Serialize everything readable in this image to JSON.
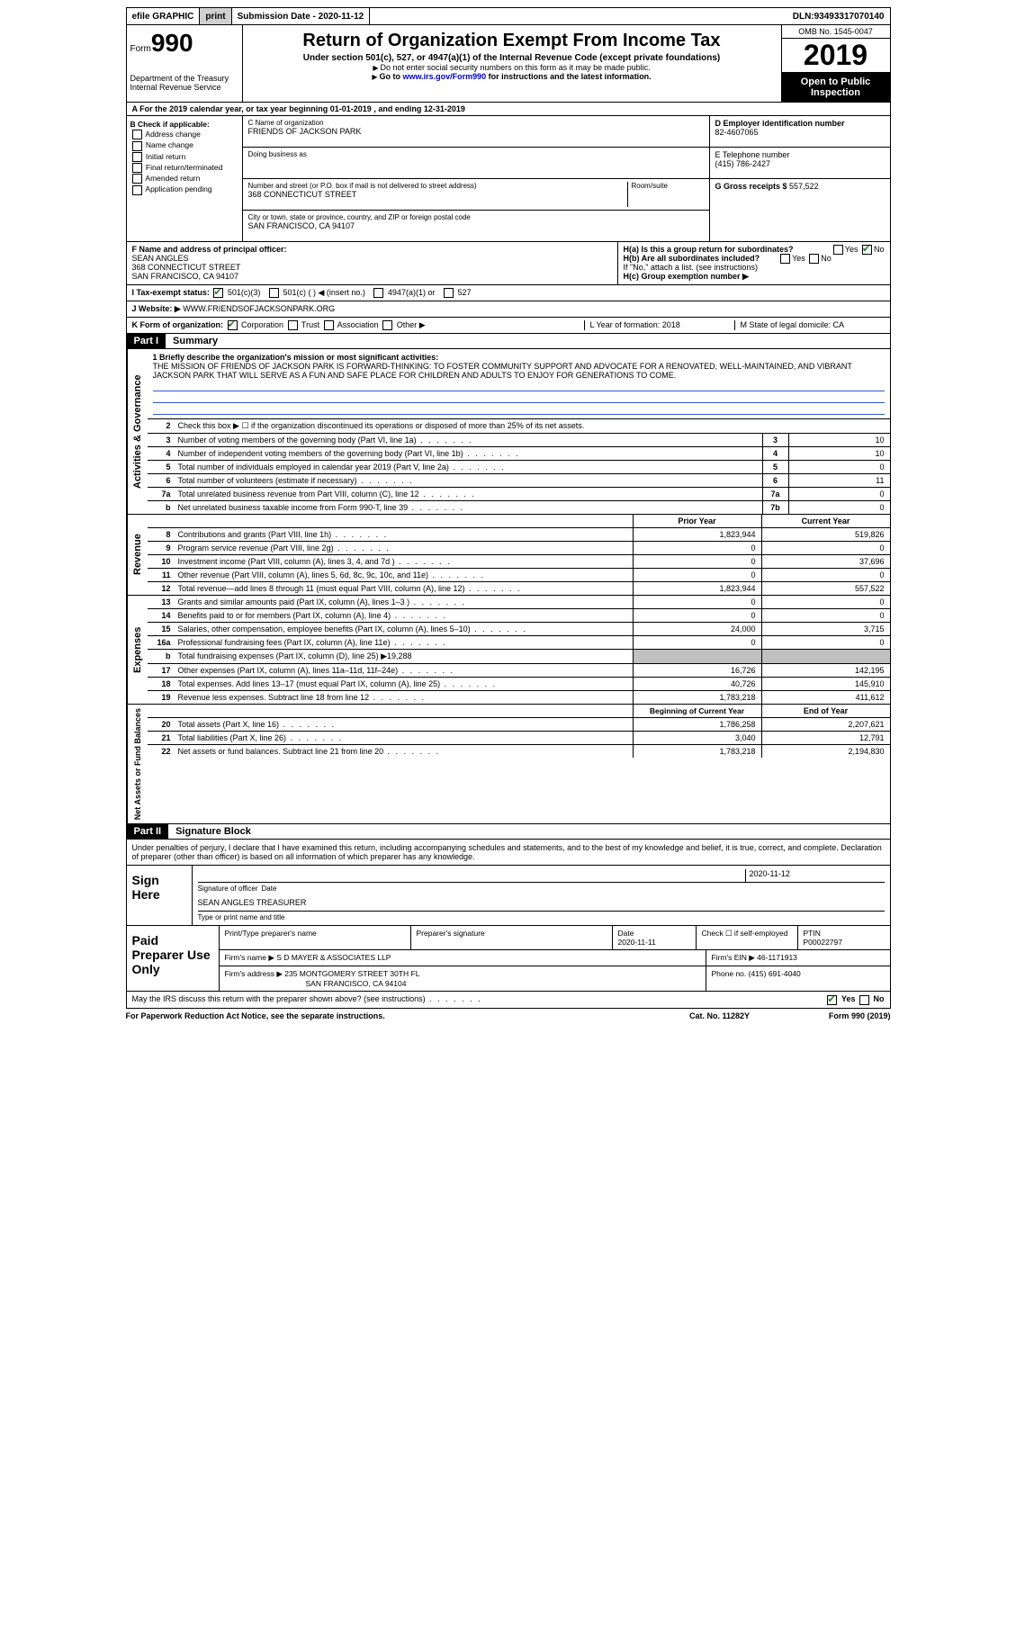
{
  "top_bar": {
    "efile": "efile GRAPHIC",
    "print": "print",
    "submission_label": "Submission Date - ",
    "submission_date": "2020-11-12",
    "dln_label": "DLN: ",
    "dln": "93493317070140"
  },
  "header": {
    "form_prefix": "Form",
    "form_number": "990",
    "dept": "Department of the Treasury\nInternal Revenue Service",
    "title": "Return of Organization Exempt From Income Tax",
    "subtitle": "Under section 501(c), 527, or 4947(a)(1) of the Internal Revenue Code (except private foundations)",
    "note1": "Do not enter social security numbers on this form as it may be made public.",
    "note2_pre": "Go to ",
    "note2_link": "www.irs.gov/Form990",
    "note2_post": " for instructions and the latest information.",
    "omb": "OMB No. 1545-0047",
    "year": "2019",
    "inspection": "Open to Public Inspection"
  },
  "line_a": {
    "text": "For the 2019 calendar year, or tax year beginning ",
    "begin": "01-01-2019",
    "mid": " , and ending ",
    "end": "12-31-2019"
  },
  "box_b": {
    "label": "B Check if applicable:",
    "items": [
      "Address change",
      "Name change",
      "Initial return",
      "Final return/terminated",
      "Amended return",
      "Application pending"
    ]
  },
  "box_c": {
    "name_label": "C Name of organization",
    "name": "FRIENDS OF JACKSON PARK",
    "dba_label": "Doing business as",
    "addr_label": "Number and street (or P.O. box if mail is not delivered to street address)",
    "room_label": "Room/suite",
    "addr": "368 CONNECTICUT STREET",
    "city_label": "City or town, state or province, country, and ZIP or foreign postal code",
    "city": "SAN FRANCISCO, CA  94107"
  },
  "box_d": {
    "ein_label": "D Employer identification number",
    "ein": "82-4607065",
    "tel_label": "E Telephone number",
    "tel": "(415) 786-2427",
    "gross_label": "G Gross receipts $ ",
    "gross": "557,522"
  },
  "box_f": {
    "label": "F Name and address of principal officer:",
    "name": "SEAN ANGLES",
    "addr1": "368 CONNECTICUT STREET",
    "addr2": "SAN FRANCISCO, CA  94107"
  },
  "box_h": {
    "a": "H(a)  Is this a group return for subordinates?",
    "b": "H(b)  Are all subordinates included?",
    "note": "If \"No,\" attach a list. (see instructions)",
    "c": "H(c)  Group exemption number ▶"
  },
  "line_i": {
    "label": "I   Tax-exempt status:",
    "opts": [
      "501(c)(3)",
      "501(c) (  ) ◀ (insert no.)",
      "4947(a)(1) or",
      "527"
    ]
  },
  "line_j": {
    "label": "J   Website: ▶ ",
    "val": "WWW.FRIENDSOFJACKSONPARK.ORG"
  },
  "line_k": {
    "label": "K Form of organization:",
    "opts": [
      "Corporation",
      "Trust",
      "Association",
      "Other ▶"
    ]
  },
  "line_lm": {
    "l": "L Year of formation: 2018",
    "m": "M State of legal domicile: CA"
  },
  "part1": {
    "label": "Part I",
    "title": "Summary",
    "q1_label": "1   Briefly describe the organization's mission or most significant activities:",
    "mission": "THE MISSION OF FRIENDS OF JACKSON PARK IS FORWARD-THINKING: TO FOSTER COMMUNITY SUPPORT AND ADVOCATE FOR A RENOVATED, WELL-MAINTAINED, AND VIBRANT JACKSON PARK THAT WILL SERVE AS A FUN AND SAFE PLACE FOR CHILDREN AND ADULTS TO ENJOY FOR GENERATIONS TO COME.",
    "q2": "Check this box ▶ ☐  if the organization discontinued its operations or disposed of more than 25% of its net assets.",
    "governance_rows": [
      {
        "n": "3",
        "t": "Number of voting members of the governing body (Part VI, line 1a)",
        "box": "3",
        "v": "10"
      },
      {
        "n": "4",
        "t": "Number of independent voting members of the governing body (Part VI, line 1b)",
        "box": "4",
        "v": "10"
      },
      {
        "n": "5",
        "t": "Total number of individuals employed in calendar year 2019 (Part V, line 2a)",
        "box": "5",
        "v": "0"
      },
      {
        "n": "6",
        "t": "Total number of volunteers (estimate if necessary)",
        "box": "6",
        "v": "11"
      },
      {
        "n": "7a",
        "t": "Total unrelated business revenue from Part VIII, column (C), line 12",
        "box": "7a",
        "v": "0"
      },
      {
        "n": "b",
        "t": "Net unrelated business taxable income from Form 990-T, line 39",
        "box": "7b",
        "v": "0"
      }
    ],
    "col_py": "Prior Year",
    "col_cy": "Current Year",
    "revenue_rows": [
      {
        "n": "8",
        "t": "Contributions and grants (Part VIII, line 1h)",
        "py": "1,823,944",
        "cy": "519,826"
      },
      {
        "n": "9",
        "t": "Program service revenue (Part VIII, line 2g)",
        "py": "0",
        "cy": "0"
      },
      {
        "n": "10",
        "t": "Investment income (Part VIII, column (A), lines 3, 4, and 7d )",
        "py": "0",
        "cy": "37,696"
      },
      {
        "n": "11",
        "t": "Other revenue (Part VIII, column (A), lines 5, 6d, 8c, 9c, 10c, and 11e)",
        "py": "0",
        "cy": "0"
      },
      {
        "n": "12",
        "t": "Total revenue—add lines 8 through 11 (must equal Part VIII, column (A), line 12)",
        "py": "1,823,944",
        "cy": "557,522"
      }
    ],
    "expense_rows": [
      {
        "n": "13",
        "t": "Grants and similar amounts paid (Part IX, column (A), lines 1–3 )",
        "py": "0",
        "cy": "0"
      },
      {
        "n": "14",
        "t": "Benefits paid to or for members (Part IX, column (A), line 4)",
        "py": "0",
        "cy": "0"
      },
      {
        "n": "15",
        "t": "Salaries, other compensation, employee benefits (Part IX, column (A), lines 5–10)",
        "py": "24,000",
        "cy": "3,715"
      },
      {
        "n": "16a",
        "t": "Professional fundraising fees (Part IX, column (A), line 11e)",
        "py": "0",
        "cy": "0"
      },
      {
        "n": "b",
        "t": "Total fundraising expenses (Part IX, column (D), line 25) ▶19,288",
        "py": "",
        "cy": "",
        "shaded": true
      },
      {
        "n": "17",
        "t": "Other expenses (Part IX, column (A), lines 11a–11d, 11f–24e)",
        "py": "16,726",
        "cy": "142,195"
      },
      {
        "n": "18",
        "t": "Total expenses. Add lines 13–17 (must equal Part IX, column (A), line 25)",
        "py": "40,726",
        "cy": "145,910"
      },
      {
        "n": "19",
        "t": "Revenue less expenses. Subtract line 18 from line 12",
        "py": "1,783,218",
        "cy": "411,612"
      }
    ],
    "col_beg": "Beginning of Current Year",
    "col_end": "End of Year",
    "netasset_rows": [
      {
        "n": "20",
        "t": "Total assets (Part X, line 16)",
        "py": "1,786,258",
        "cy": "2,207,621"
      },
      {
        "n": "21",
        "t": "Total liabilities (Part X, line 26)",
        "py": "3,040",
        "cy": "12,791"
      },
      {
        "n": "22",
        "t": "Net assets or fund balances. Subtract line 21 from line 20",
        "py": "1,783,218",
        "cy": "2,194,830"
      }
    ],
    "vtabs": {
      "gov": "Activities & Governance",
      "rev": "Revenue",
      "exp": "Expenses",
      "net": "Net Assets or\nFund Balances"
    }
  },
  "part2": {
    "label": "Part II",
    "title": "Signature Block",
    "decl": "Under penalties of perjury, I declare that I have examined this return, including accompanying schedules and statements, and to the best of my knowledge and belief, it is true, correct, and complete. Declaration of preparer (other than officer) is based on all information of which preparer has any knowledge.",
    "sign_here": "Sign Here",
    "sig_officer": "Signature of officer",
    "sig_date": "2020-11-12",
    "date_lbl": "Date",
    "officer_name": "SEAN ANGLES TREASURER",
    "type_name": "Type or print name and title",
    "paid": "Paid Preparer Use Only",
    "prep_name_lbl": "Print/Type preparer's name",
    "prep_sig_lbl": "Preparer's signature",
    "prep_date_lbl": "Date",
    "prep_date": "2020-11-11",
    "check_self": "Check ☐ if self-employed",
    "ptin_lbl": "PTIN",
    "ptin": "P00022797",
    "firm_name_lbl": "Firm's name    ▶ ",
    "firm_name": "S D MAYER & ASSOCIATES LLP",
    "firm_ein_lbl": "Firm's EIN ▶ ",
    "firm_ein": "46-1171913",
    "firm_addr_lbl": "Firm's address ▶ ",
    "firm_addr1": "235 MONTGOMERY STREET 30TH FL",
    "firm_addr2": "SAN FRANCISCO, CA  94104",
    "firm_phone_lbl": "Phone no. ",
    "firm_phone": "(415) 691-4040",
    "discuss": "May the IRS discuss this return with the preparer shown above? (see instructions)",
    "yes": "Yes",
    "no": "No"
  },
  "footer": {
    "pra": "For Paperwork Reduction Act Notice, see the separate instructions.",
    "cat": "Cat. No. 11282Y",
    "form": "Form 990 (2019)"
  }
}
